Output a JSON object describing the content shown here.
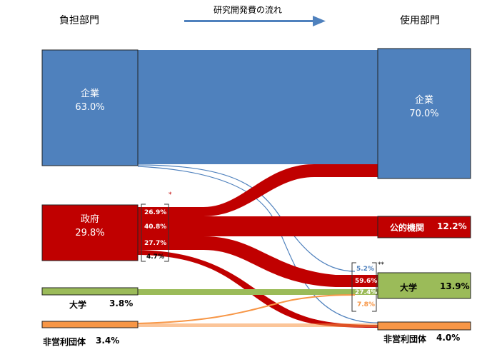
{
  "header": {
    "left_title": "負担部門",
    "center_title": "研究開発費の流れ",
    "right_title": "使用部門"
  },
  "sources": {
    "company": {
      "name": "企業",
      "share": "63.0%"
    },
    "government": {
      "name": "政府",
      "share": "29.8%"
    },
    "university": {
      "name": "大学",
      "share": "3.8%"
    },
    "nonprofit": {
      "name": "非営利団体",
      "share": "3.4%"
    }
  },
  "destinations": {
    "company": {
      "name": "企業",
      "share": "70.0%"
    },
    "public_institution": {
      "name": "公的機関",
      "share": "12.2%"
    },
    "university": {
      "name": "大学",
      "share": "13.9%"
    },
    "nonprofit": {
      "name": "非営利団体",
      "share": "4.0%"
    }
  },
  "government_breakdown": {
    "to_company": "26.9%",
    "to_public_institution": "40.8%",
    "to_university": "27.7%",
    "to_nonprofit": "4.7%",
    "marker": "*"
  },
  "university_breakdown": {
    "from_company": "5.2%",
    "from_government": "59.6%",
    "from_university": "27.4%",
    "from_nonprofit": "7.8%",
    "marker": "**"
  },
  "colors": {
    "company": "#4f81bd",
    "government": "#c00000",
    "university": "#9bbb59",
    "nonprofit": "#f79646",
    "arrow": "#4f81bd"
  }
}
